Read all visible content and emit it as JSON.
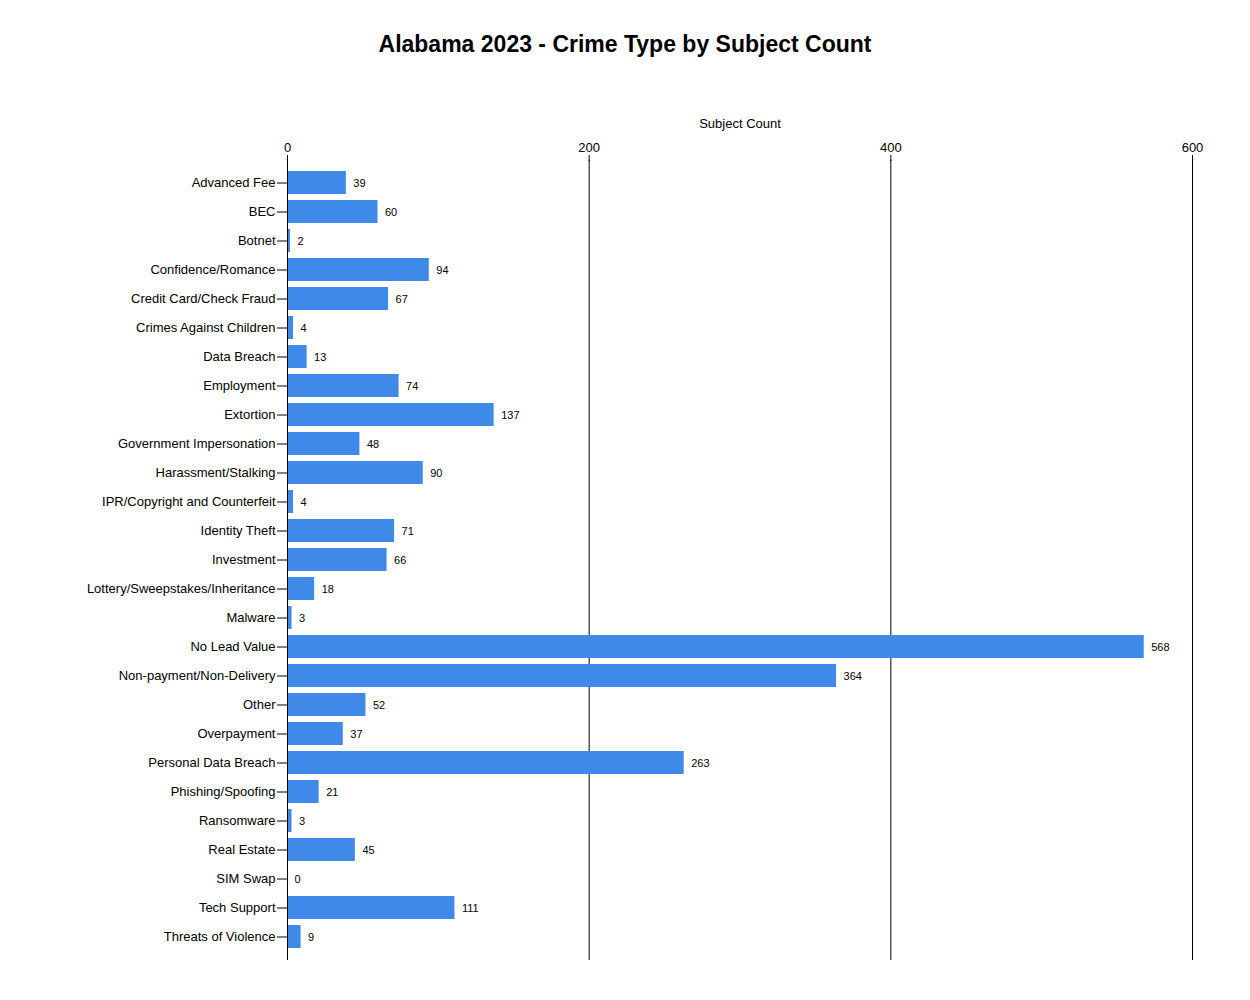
{
  "chart_data": {
    "type": "bar",
    "orientation": "horizontal",
    "title": "Alabama 2023 - Crime Type by Subject Count",
    "x_label": "Subject Count",
    "categories": [
      "Advanced Fee",
      "BEC",
      "Botnet",
      "Confidence/Romance",
      "Credit Card/Check Fraud",
      "Crimes Against Children",
      "Data Breach",
      "Employment",
      "Extortion",
      "Government Impersonation",
      "Harassment/Stalking",
      "IPR/Copyright and Counterfeit",
      "Identity Theft",
      "Investment",
      "Lottery/Sweepstakes/Inheritance",
      "Malware",
      "No Lead Value",
      "Non-payment/Non-Delivery",
      "Other",
      "Overpayment",
      "Personal Data Breach",
      "Phishing/Spoofing",
      "Ransomware",
      "Real Estate",
      "SIM Swap",
      "Tech Support",
      "Threats of Violence"
    ],
    "values": [
      39,
      60,
      2,
      94,
      67,
      4,
      13,
      74,
      137,
      48,
      90,
      4,
      71,
      66,
      18,
      3,
      568,
      364,
      52,
      37,
      263,
      21,
      3,
      45,
      0,
      111,
      9
    ],
    "color": "#3f8ae9",
    "xlim": [
      0,
      600
    ],
    "xticks": [
      0,
      200,
      400,
      600
    ],
    "grid": true,
    "data_labels": true
  }
}
